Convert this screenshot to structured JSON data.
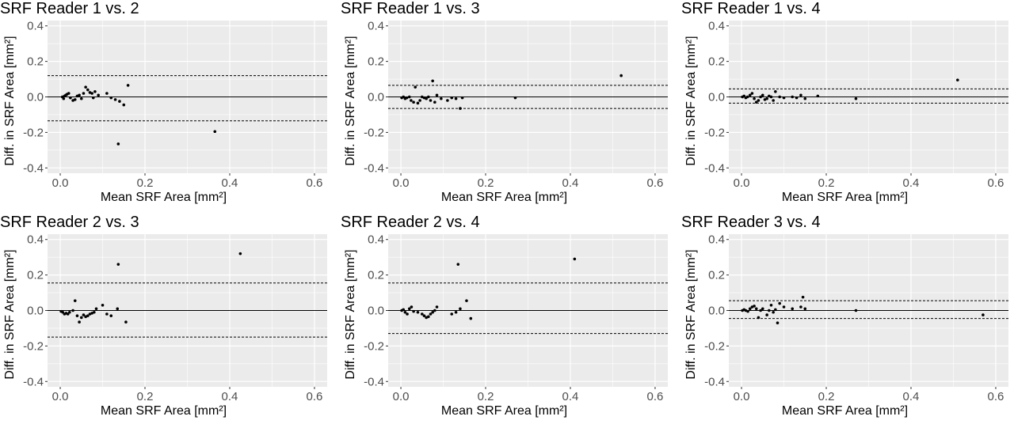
{
  "figure": {
    "colors": {
      "panel_bg": "#ebebeb",
      "grid_major": "#ffffff",
      "tick_text": "#4d4d4d",
      "point": "#000000",
      "line": "#000000"
    }
  },
  "chart_data": [
    {
      "type": "scatter",
      "title": "SRF Reader 1 vs. 2",
      "xlabel": "Mean SRF Area [mm²]",
      "ylabel": "Diff. in SRF Area [mm²]",
      "xlim": [
        -0.03,
        0.63
      ],
      "ylim": [
        -0.43,
        0.43
      ],
      "xticks": [
        0.0,
        0.2,
        0.4,
        0.6
      ],
      "xtick_labels": [
        "0.0",
        "0.2",
        "0.4",
        "0.6"
      ],
      "yticks": [
        -0.4,
        -0.2,
        0.0,
        0.2,
        0.4
      ],
      "ytick_labels": [
        "-0.4",
        "-0.2",
        "0.0",
        "0.2",
        "0.4"
      ],
      "grid": true,
      "reference_lines": [
        {
          "name": "mean difference",
          "y": 0.0,
          "style": "solid"
        },
        {
          "name": "upper limit of agreement",
          "y": 0.12,
          "style": "dashed"
        },
        {
          "name": "lower limit of agreement",
          "y": -0.135,
          "style": "dashed"
        }
      ],
      "points": [
        [
          0.005,
          0.0
        ],
        [
          0.008,
          -0.01
        ],
        [
          0.01,
          0.005
        ],
        [
          0.013,
          0.01
        ],
        [
          0.016,
          0.015
        ],
        [
          0.02,
          0.02
        ],
        [
          0.024,
          -0.005
        ],
        [
          0.03,
          -0.02
        ],
        [
          0.035,
          -0.015
        ],
        [
          0.04,
          0.005
        ],
        [
          0.045,
          0.01
        ],
        [
          0.05,
          -0.01
        ],
        [
          0.055,
          0.02
        ],
        [
          0.06,
          0.055
        ],
        [
          0.065,
          0.04
        ],
        [
          0.07,
          0.025
        ],
        [
          0.075,
          0.02
        ],
        [
          0.078,
          -0.005
        ],
        [
          0.082,
          0.03
        ],
        [
          0.09,
          0.01
        ],
        [
          0.11,
          0.02
        ],
        [
          0.12,
          -0.005
        ],
        [
          0.13,
          -0.015
        ],
        [
          0.14,
          -0.025
        ],
        [
          0.15,
          -0.045
        ],
        [
          0.16,
          0.065
        ],
        [
          0.137,
          -0.265
        ],
        [
          0.365,
          -0.195
        ]
      ]
    },
    {
      "type": "scatter",
      "title": "SRF Reader 1 vs. 3",
      "xlabel": "Mean SRF Area [mm²]",
      "ylabel": "Diff. in SRF Area [mm²]",
      "xlim": [
        -0.03,
        0.63
      ],
      "ylim": [
        -0.43,
        0.43
      ],
      "xticks": [
        0.0,
        0.2,
        0.4,
        0.6
      ],
      "xtick_labels": [
        "0.0",
        "0.2",
        "0.4",
        "0.6"
      ],
      "yticks": [
        -0.4,
        -0.2,
        0.0,
        0.2,
        0.4
      ],
      "ytick_labels": [
        "-0.4",
        "-0.2",
        "0.0",
        "0.2",
        "0.4"
      ],
      "grid": true,
      "reference_lines": [
        {
          "name": "mean difference",
          "y": 0.0,
          "style": "solid"
        },
        {
          "name": "upper limit of agreement",
          "y": 0.065,
          "style": "dashed"
        },
        {
          "name": "lower limit of agreement",
          "y": -0.065,
          "style": "dashed"
        }
      ],
      "points": [
        [
          0.002,
          -0.005
        ],
        [
          0.006,
          0.0
        ],
        [
          0.01,
          -0.01
        ],
        [
          0.014,
          -0.005
        ],
        [
          0.02,
          0.0
        ],
        [
          0.024,
          -0.02
        ],
        [
          0.03,
          -0.03
        ],
        [
          0.034,
          0.055
        ],
        [
          0.04,
          -0.035
        ],
        [
          0.045,
          -0.02
        ],
        [
          0.05,
          0.0
        ],
        [
          0.055,
          -0.005
        ],
        [
          0.06,
          -0.01
        ],
        [
          0.065,
          0.0
        ],
        [
          0.07,
          -0.02
        ],
        [
          0.075,
          0.09
        ],
        [
          0.08,
          -0.03
        ],
        [
          0.085,
          0.01
        ],
        [
          0.095,
          -0.01
        ],
        [
          0.11,
          -0.02
        ],
        [
          0.12,
          -0.005
        ],
        [
          0.13,
          -0.01
        ],
        [
          0.14,
          -0.065
        ],
        [
          0.145,
          -0.005
        ],
        [
          0.27,
          -0.005
        ],
        [
          0.52,
          0.12
        ]
      ]
    },
    {
      "type": "scatter",
      "title": "SRF Reader 1 vs. 4",
      "xlabel": "Mean SRF Area [mm²]",
      "ylabel": "Diff. in SRF Area [mm²]",
      "xlim": [
        -0.03,
        0.63
      ],
      "ylim": [
        -0.43,
        0.43
      ],
      "xticks": [
        0.0,
        0.2,
        0.4,
        0.6
      ],
      "xtick_labels": [
        "0.0",
        "0.2",
        "0.4",
        "0.6"
      ],
      "yticks": [
        -0.4,
        -0.2,
        0.0,
        0.2,
        0.4
      ],
      "ytick_labels": [
        "-0.4",
        "-0.2",
        "0.0",
        "0.2",
        "0.4"
      ],
      "grid": true,
      "reference_lines": [
        {
          "name": "mean difference",
          "y": 0.0,
          "style": "solid"
        },
        {
          "name": "upper limit of agreement",
          "y": 0.045,
          "style": "dashed"
        },
        {
          "name": "lower limit of agreement",
          "y": -0.035,
          "style": "dashed"
        }
      ],
      "points": [
        [
          0.002,
          0.0
        ],
        [
          0.006,
          0.005
        ],
        [
          0.01,
          -0.005
        ],
        [
          0.014,
          0.0
        ],
        [
          0.02,
          0.01
        ],
        [
          0.025,
          0.02
        ],
        [
          0.03,
          -0.01
        ],
        [
          0.035,
          -0.03
        ],
        [
          0.04,
          -0.02
        ],
        [
          0.045,
          0.0
        ],
        [
          0.05,
          0.01
        ],
        [
          0.055,
          -0.015
        ],
        [
          0.06,
          -0.01
        ],
        [
          0.065,
          0.005
        ],
        [
          0.07,
          0.0
        ],
        [
          0.075,
          -0.02
        ],
        [
          0.08,
          0.03
        ],
        [
          0.09,
          0.0
        ],
        [
          0.1,
          -0.005
        ],
        [
          0.12,
          0.0
        ],
        [
          0.13,
          -0.005
        ],
        [
          0.14,
          0.01
        ],
        [
          0.15,
          -0.01
        ],
        [
          0.18,
          0.005
        ],
        [
          0.27,
          -0.01
        ],
        [
          0.51,
          0.095
        ]
      ]
    },
    {
      "type": "scatter",
      "title": "SRF Reader 2 vs. 3",
      "xlabel": "Mean SRF Area [mm²]",
      "ylabel": "Diff. in SRF Area [mm²]",
      "xlim": [
        -0.03,
        0.63
      ],
      "ylim": [
        -0.43,
        0.43
      ],
      "xticks": [
        0.0,
        0.2,
        0.4,
        0.6
      ],
      "xtick_labels": [
        "0.0",
        "0.2",
        "0.4",
        "0.6"
      ],
      "yticks": [
        -0.4,
        -0.2,
        0.0,
        0.2,
        0.4
      ],
      "ytick_labels": [
        "-0.4",
        "-0.2",
        "0.0",
        "0.2",
        "0.4"
      ],
      "grid": true,
      "reference_lines": [
        {
          "name": "mean difference",
          "y": 0.0,
          "style": "solid"
        },
        {
          "name": "upper limit of agreement",
          "y": 0.155,
          "style": "dashed"
        },
        {
          "name": "lower limit of agreement",
          "y": -0.15,
          "style": "dashed"
        }
      ],
      "points": [
        [
          0.002,
          -0.005
        ],
        [
          0.006,
          -0.01
        ],
        [
          0.01,
          -0.02
        ],
        [
          0.014,
          -0.015
        ],
        [
          0.018,
          -0.02
        ],
        [
          0.022,
          -0.01
        ],
        [
          0.03,
          0.0
        ],
        [
          0.035,
          0.055
        ],
        [
          0.04,
          -0.03
        ],
        [
          0.045,
          -0.065
        ],
        [
          0.05,
          -0.04
        ],
        [
          0.055,
          -0.025
        ],
        [
          0.06,
          -0.035
        ],
        [
          0.065,
          -0.03
        ],
        [
          0.07,
          -0.02
        ],
        [
          0.075,
          -0.015
        ],
        [
          0.08,
          -0.01
        ],
        [
          0.085,
          0.01
        ],
        [
          0.1,
          0.03
        ],
        [
          0.11,
          -0.02
        ],
        [
          0.12,
          -0.03
        ],
        [
          0.135,
          0.01
        ],
        [
          0.137,
          0.26
        ],
        [
          0.155,
          -0.065
        ],
        [
          0.425,
          0.32
        ]
      ]
    },
    {
      "type": "scatter",
      "title": "SRF Reader 2 vs. 4",
      "xlabel": "Mean SRF Area [mm²]",
      "ylabel": "Diff. in SRF Area [mm²]",
      "xlim": [
        -0.03,
        0.63
      ],
      "ylim": [
        -0.43,
        0.43
      ],
      "xticks": [
        0.0,
        0.2,
        0.4,
        0.6
      ],
      "xtick_labels": [
        "0.0",
        "0.2",
        "0.4",
        "0.6"
      ],
      "yticks": [
        -0.4,
        -0.2,
        0.0,
        0.2,
        0.4
      ],
      "ytick_labels": [
        "-0.4",
        "-0.2",
        "0.0",
        "0.2",
        "0.4"
      ],
      "grid": true,
      "reference_lines": [
        {
          "name": "mean difference",
          "y": 0.0,
          "style": "solid"
        },
        {
          "name": "upper limit of agreement",
          "y": 0.155,
          "style": "dashed"
        },
        {
          "name": "lower limit of agreement",
          "y": -0.13,
          "style": "dashed"
        }
      ],
      "points": [
        [
          0.002,
          0.0
        ],
        [
          0.006,
          0.005
        ],
        [
          0.01,
          -0.01
        ],
        [
          0.015,
          -0.02
        ],
        [
          0.02,
          0.01
        ],
        [
          0.025,
          0.02
        ],
        [
          0.03,
          -0.005
        ],
        [
          0.04,
          -0.01
        ],
        [
          0.05,
          -0.02
        ],
        [
          0.055,
          -0.03
        ],
        [
          0.06,
          -0.04
        ],
        [
          0.065,
          -0.035
        ],
        [
          0.07,
          -0.02
        ],
        [
          0.075,
          -0.01
        ],
        [
          0.08,
          0.0
        ],
        [
          0.085,
          0.02
        ],
        [
          0.12,
          -0.02
        ],
        [
          0.13,
          -0.01
        ],
        [
          0.135,
          0.26
        ],
        [
          0.14,
          0.01
        ],
        [
          0.155,
          0.055
        ],
        [
          0.165,
          -0.045
        ],
        [
          0.41,
          0.29
        ]
      ]
    },
    {
      "type": "scatter",
      "title": "SRF Reader 3 vs. 4",
      "xlabel": "Mean SRF Area [mm²]",
      "ylabel": "Diff. in SRF Area [mm²]",
      "xlim": [
        -0.03,
        0.63
      ],
      "ylim": [
        -0.43,
        0.43
      ],
      "xticks": [
        0.0,
        0.2,
        0.4,
        0.6
      ],
      "xtick_labels": [
        "0.0",
        "0.2",
        "0.4",
        "0.6"
      ],
      "yticks": [
        -0.4,
        -0.2,
        0.0,
        0.2,
        0.4
      ],
      "ytick_labels": [
        "-0.4",
        "-0.2",
        "0.0",
        "0.2",
        "0.4"
      ],
      "grid": true,
      "reference_lines": [
        {
          "name": "mean difference",
          "y": 0.0,
          "style": "solid"
        },
        {
          "name": "upper limit of agreement",
          "y": 0.055,
          "style": "dashed"
        },
        {
          "name": "lower limit of agreement",
          "y": -0.045,
          "style": "dashed"
        }
      ],
      "points": [
        [
          0.002,
          0.0
        ],
        [
          0.006,
          0.005
        ],
        [
          0.01,
          0.0
        ],
        [
          0.015,
          -0.005
        ],
        [
          0.02,
          0.01
        ],
        [
          0.025,
          0.02
        ],
        [
          0.03,
          0.025
        ],
        [
          0.035,
          0.01
        ],
        [
          0.04,
          -0.04
        ],
        [
          0.045,
          0.0
        ],
        [
          0.05,
          0.01
        ],
        [
          0.06,
          -0.025
        ],
        [
          0.065,
          0.0
        ],
        [
          0.07,
          0.03
        ],
        [
          0.075,
          -0.01
        ],
        [
          0.08,
          0.005
        ],
        [
          0.085,
          -0.07
        ],
        [
          0.09,
          0.04
        ],
        [
          0.1,
          0.02
        ],
        [
          0.12,
          0.01
        ],
        [
          0.14,
          0.02
        ],
        [
          0.145,
          0.075
        ],
        [
          0.15,
          0.01
        ],
        [
          0.27,
          0.0
        ],
        [
          0.57,
          -0.025
        ]
      ]
    }
  ]
}
